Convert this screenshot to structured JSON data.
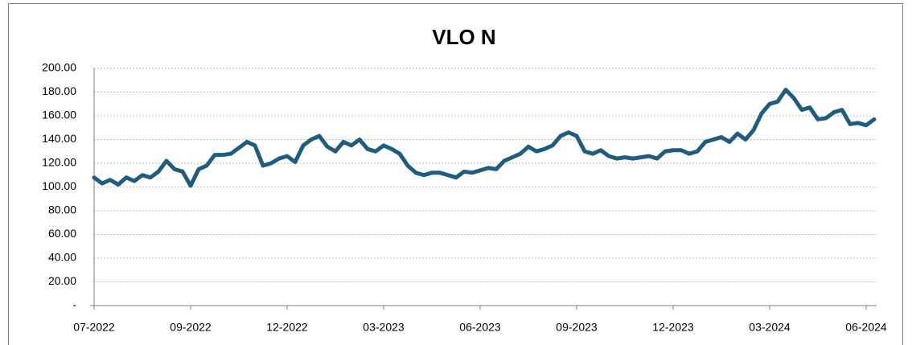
{
  "chart_data": {
    "type": "line",
    "title": "VLO N",
    "categories": [
      "07-2022",
      null,
      null,
      null,
      null,
      null,
      null,
      null,
      null,
      null,
      null,
      null,
      "09-2022",
      null,
      null,
      null,
      null,
      null,
      null,
      null,
      null,
      null,
      null,
      null,
      "12-2022",
      null,
      null,
      null,
      null,
      null,
      null,
      null,
      null,
      null,
      null,
      null,
      "03-2023",
      null,
      null,
      null,
      null,
      null,
      null,
      null,
      null,
      null,
      null,
      null,
      "06-2023",
      null,
      null,
      null,
      null,
      null,
      null,
      null,
      null,
      null,
      null,
      null,
      "09-2023",
      null,
      null,
      null,
      null,
      null,
      null,
      null,
      null,
      null,
      null,
      null,
      "12-2023",
      null,
      null,
      null,
      null,
      null,
      null,
      null,
      null,
      null,
      null,
      null,
      "03-2024",
      null,
      null,
      null,
      null,
      null,
      null,
      null,
      null,
      null,
      null,
      null,
      "06-2024",
      null
    ],
    "series": [
      {
        "name": "VLO N",
        "color": "#1f5c80",
        "values": [
          108,
          103,
          106,
          102,
          108,
          105,
          110,
          108,
          113,
          122,
          115,
          113,
          101,
          115,
          118,
          127,
          127,
          128,
          133,
          138,
          135,
          118,
          120,
          124,
          126,
          121,
          135,
          140,
          143,
          134,
          130,
          138,
          135,
          140,
          132,
          130,
          135,
          132,
          128,
          118,
          112,
          110,
          112,
          112,
          110,
          108,
          113,
          112,
          114,
          116,
          115,
          122,
          125,
          128,
          134,
          130,
          132,
          135,
          143,
          146,
          143,
          130,
          128,
          131,
          126,
          124,
          125,
          124,
          125,
          126,
          124,
          130,
          131,
          131,
          128,
          130,
          138,
          140,
          142,
          138,
          145,
          140,
          148,
          162,
          170,
          172,
          182,
          175,
          165,
          167,
          157,
          158,
          163,
          165,
          153,
          154,
          152,
          157
        ]
      }
    ],
    "ylim": [
      0,
      200
    ],
    "yticks": [
      {
        "value": 0,
        "label": "-"
      },
      {
        "value": 20,
        "label": "20.00"
      },
      {
        "value": 40,
        "label": "40.00"
      },
      {
        "value": 60,
        "label": "60.00"
      },
      {
        "value": 80,
        "label": "80.00"
      },
      {
        "value": 100,
        "label": "100.00"
      },
      {
        "value": 120,
        "label": "120.00"
      },
      {
        "value": 140,
        "label": "140.00"
      },
      {
        "value": 160,
        "label": "160.00"
      },
      {
        "value": 180,
        "label": "180.00"
      },
      {
        "value": 200,
        "label": "200.00"
      }
    ],
    "grid": true
  }
}
